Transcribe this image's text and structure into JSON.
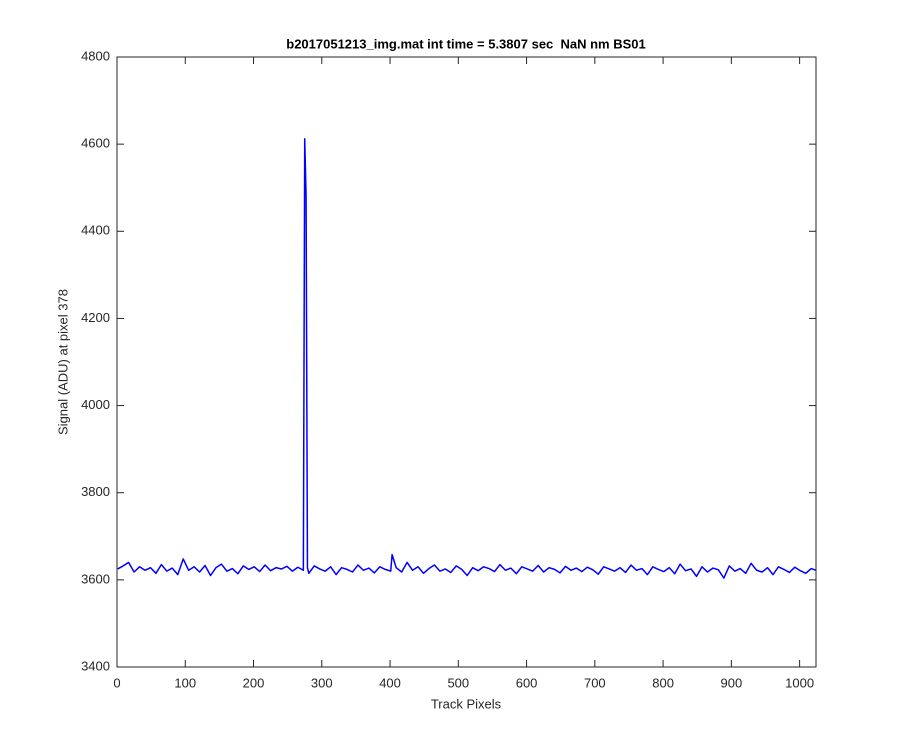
{
  "chart_data": {
    "type": "line",
    "title": "b2017051213_img.mat int time = 5.3807 sec  NaN nm BS01",
    "x_label": "Track Pixels",
    "y_label": "Signal (ADU) at pixel 378",
    "color": "#0000ff",
    "xlim": [
      0,
      1024
    ],
    "ylim": [
      3400,
      4800
    ],
    "xticks": [
      0,
      100,
      200,
      300,
      400,
      500,
      600,
      700,
      800,
      900,
      1000
    ],
    "yticks": [
      3400,
      3600,
      3800,
      4000,
      4200,
      4400,
      4600,
      4800
    ],
    "x": [
      1,
      9,
      17,
      25,
      33,
      41,
      49,
      57,
      65,
      73,
      81,
      89,
      97,
      105,
      113,
      121,
      129,
      137,
      145,
      153,
      161,
      169,
      177,
      185,
      193,
      201,
      209,
      217,
      225,
      233,
      241,
      249,
      257,
      265,
      273,
      275,
      277,
      279,
      281,
      289,
      297,
      305,
      313,
      321,
      329,
      337,
      345,
      353,
      361,
      369,
      377,
      385,
      393,
      401,
      403,
      409,
      417,
      425,
      433,
      441,
      449,
      457,
      465,
      473,
      481,
      489,
      497,
      505,
      513,
      521,
      529,
      537,
      545,
      553,
      561,
      569,
      577,
      585,
      593,
      601,
      609,
      617,
      625,
      633,
      641,
      649,
      657,
      665,
      673,
      681,
      689,
      697,
      705,
      713,
      721,
      729,
      737,
      745,
      753,
      761,
      769,
      777,
      785,
      793,
      801,
      809,
      817,
      825,
      833,
      841,
      849,
      857,
      865,
      873,
      881,
      889,
      897,
      905,
      913,
      921,
      929,
      937,
      945,
      953,
      961,
      969,
      977,
      985,
      993,
      1001,
      1009,
      1017,
      1024
    ],
    "values": [
      3625,
      3632,
      3640,
      3618,
      3630,
      3622,
      3628,
      3615,
      3635,
      3620,
      3627,
      3612,
      3648,
      3622,
      3630,
      3618,
      3633,
      3610,
      3628,
      3636,
      3620,
      3626,
      3614,
      3632,
      3624,
      3630,
      3619,
      3634,
      3621,
      3628,
      3625,
      3631,
      3620,
      3629,
      3622,
      4612,
      4480,
      3628,
      3615,
      3632,
      3625,
      3620,
      3630,
      3612,
      3628,
      3624,
      3618,
      3634,
      3622,
      3627,
      3616,
      3630,
      3624,
      3620,
      3658,
      3628,
      3618,
      3640,
      3622,
      3630,
      3615,
      3626,
      3634,
      3620,
      3625,
      3617,
      3632,
      3624,
      3610,
      3628,
      3621,
      3630,
      3626,
      3619,
      3635,
      3622,
      3627,
      3614,
      3630,
      3625,
      3620,
      3633,
      3618,
      3628,
      3624,
      3616,
      3631,
      3622,
      3627,
      3619,
      3629,
      3623,
      3613,
      3630,
      3625,
      3620,
      3628,
      3617,
      3634,
      3622,
      3626,
      3612,
      3630,
      3624,
      3619,
      3628,
      3614,
      3636,
      3621,
      3625,
      3608,
      3630,
      3618,
      3627,
      3623,
      3604,
      3632,
      3620,
      3626,
      3615,
      3638,
      3622,
      3618,
      3628,
      3612,
      3630,
      3624,
      3617,
      3629,
      3621,
      3615,
      3626,
      3622
    ]
  }
}
